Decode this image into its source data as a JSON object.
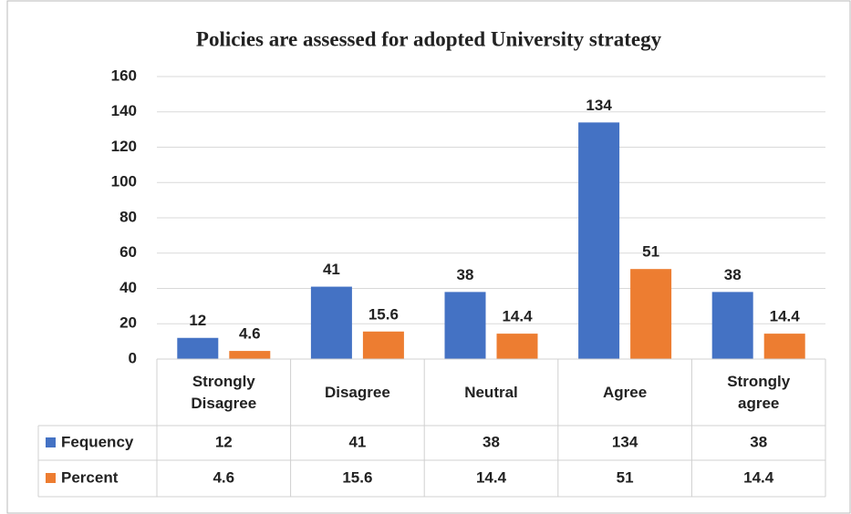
{
  "chart_data": {
    "type": "bar",
    "title": "Policies are assessed for adopted University strategy",
    "categories": [
      "Strongly Disagree",
      "Disagree",
      "Neutral",
      "Agree",
      "Strongly agree"
    ],
    "series": [
      {
        "name": "Fequency",
        "color": "#4472c4",
        "values": [
          12,
          41,
          38,
          134,
          38
        ]
      },
      {
        "name": "Percent",
        "color": "#ed7d31",
        "values": [
          4.6,
          15.6,
          14.4,
          51,
          14.4
        ]
      }
    ],
    "ylim": [
      0,
      160
    ],
    "yticks": [
      0,
      20,
      40,
      60,
      80,
      100,
      120,
      140,
      160
    ],
    "grid": true
  }
}
